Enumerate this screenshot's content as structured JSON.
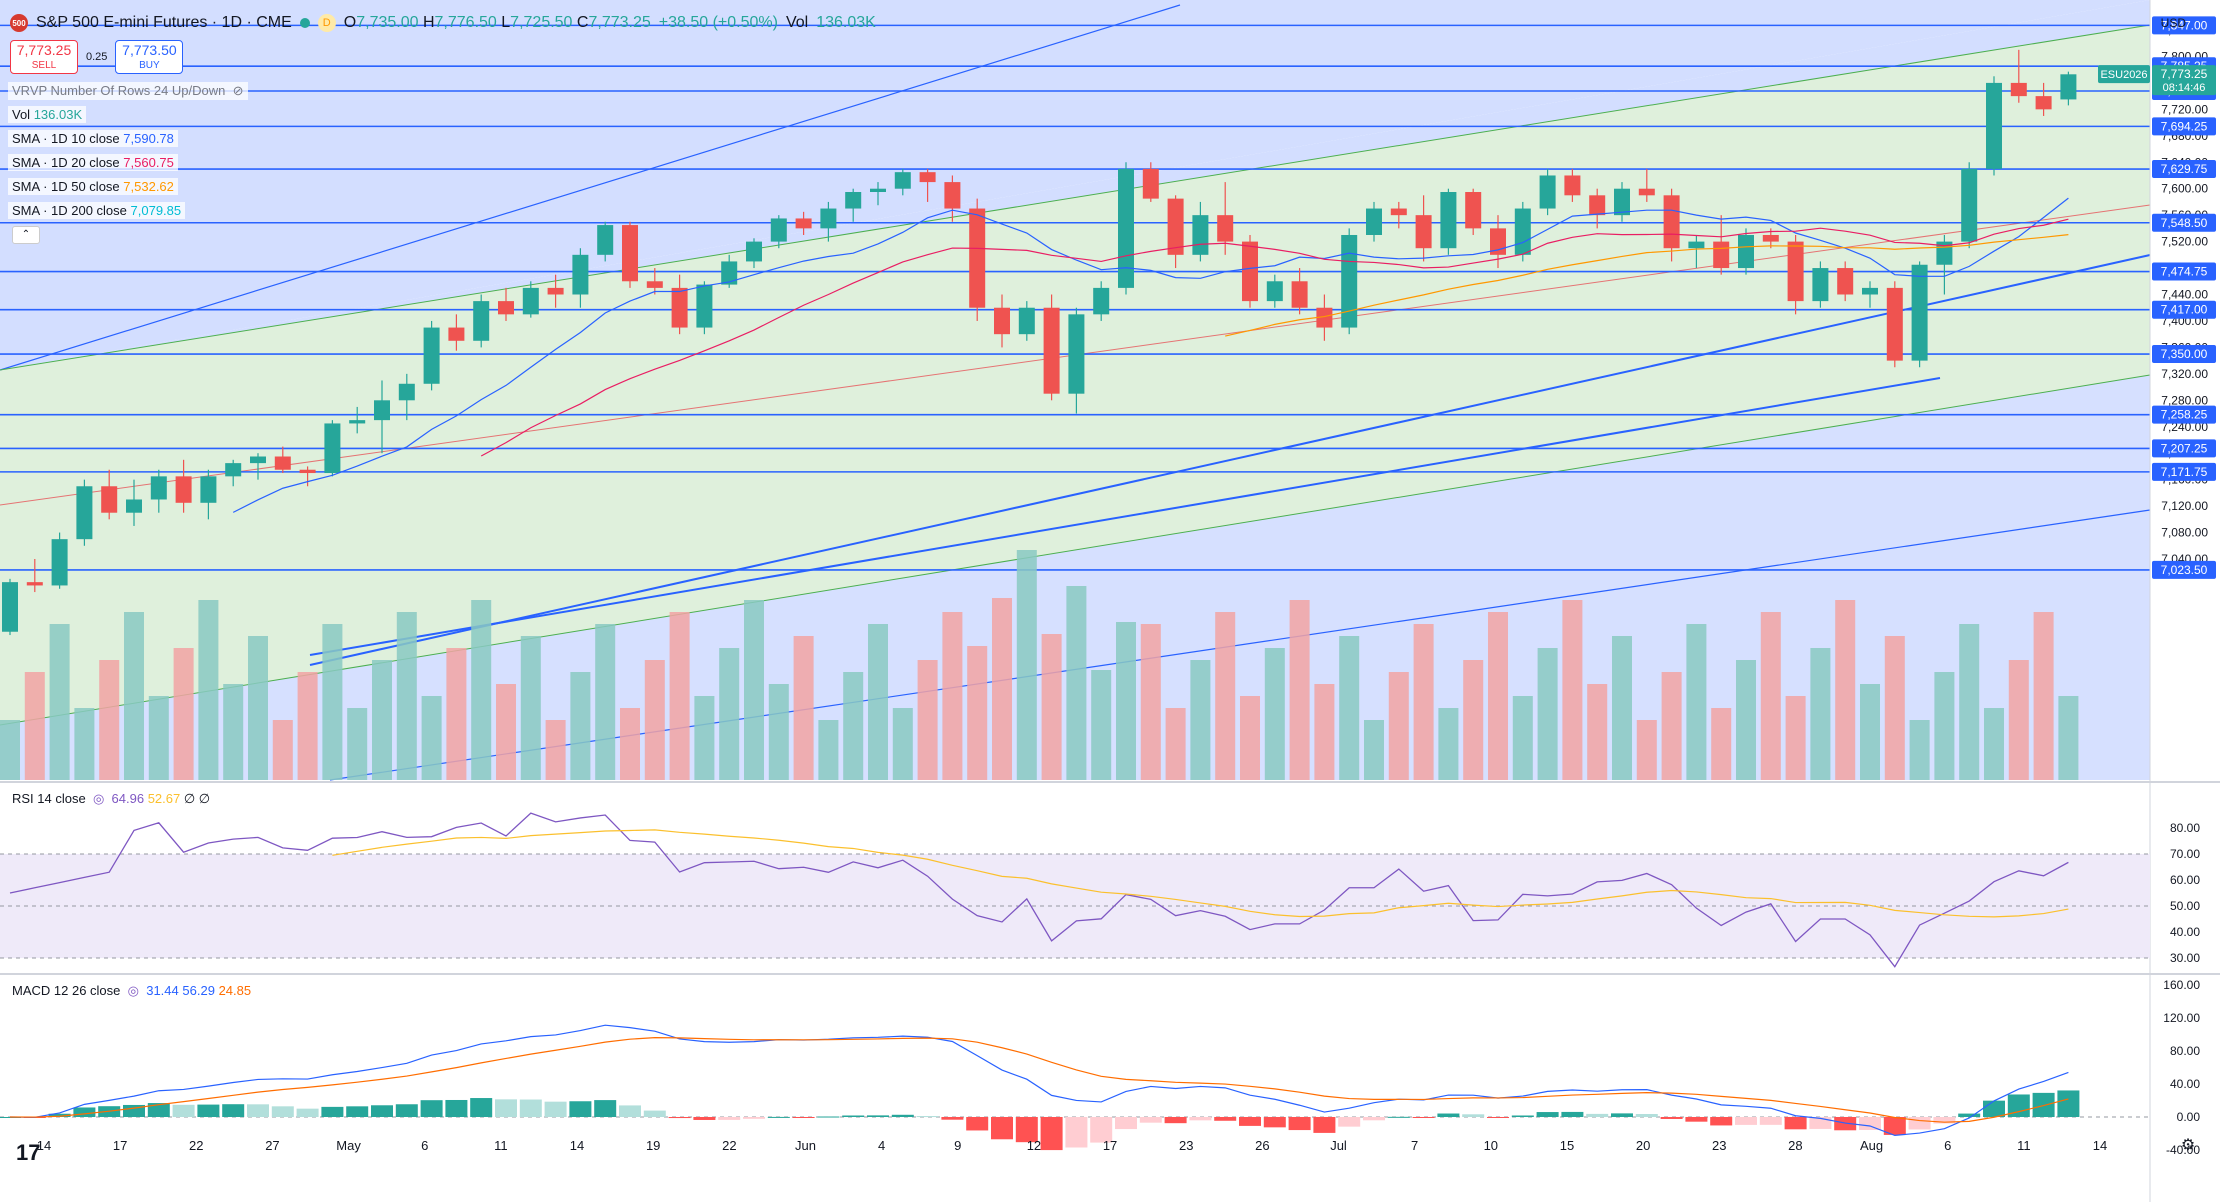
{
  "header": {
    "symbol_title": "S&P 500 E-mini Futures · 1D · CME",
    "logo_text": "500",
    "badge": "D",
    "ohlc": [
      {
        "k": "O",
        "v": "7,735.00"
      },
      {
        "k": "H",
        "v": "7,776.50"
      },
      {
        "k": "L",
        "v": "7,725.50"
      },
      {
        "k": "C",
        "v": "7,773.25"
      }
    ],
    "change": "+38.50 (+0.50%)",
    "volume_k": "Vol",
    "volume_v": "136.03K"
  },
  "trade": {
    "sell_price": "7,773.25",
    "sell_label": "SELL",
    "spread": "0.25",
    "buy_price": "7,773.50",
    "buy_label": "BUY"
  },
  "legends": {
    "vrvp": "VRVP Number Of Rows 24 Up/Down",
    "vol_label": "Vol",
    "vol_value": "136.03K",
    "sma": [
      {
        "label": "SMA · 1D 10 close",
        "value": "7,590.78",
        "color": "#2962ff"
      },
      {
        "label": "SMA · 1D 20 close",
        "value": "7,560.75",
        "color": "#e91e63"
      },
      {
        "label": "SMA · 1D 50 close",
        "value": "7,532.62",
        "color": "#ff9800"
      },
      {
        "label": "SMA · 1D 200 close",
        "value": "7,079.85",
        "color": "#00bcd4"
      }
    ],
    "rsi_label": "RSI 14 close",
    "rsi_value": "64.96",
    "rsi_ma": "52.67",
    "rsi_extra": "∅ ∅",
    "macd_label": "MACD 12 26 close",
    "macd_v1": "31.44",
    "macd_v2": "56.29",
    "macd_v3": "24.85"
  },
  "price_axis": {
    "currency": "USD",
    "ticks": [
      "7,840.00",
      "7,800.00",
      "7,760.00",
      "7,720.00",
      "7,680.00",
      "7,640.00",
      "7,600.00",
      "7,560.00",
      "7,520.00",
      "7,480.00",
      "7,440.00",
      "7,400.00",
      "7,360.00",
      "7,320.00",
      "7,280.00",
      "7,240.00",
      "7,200.00",
      "7,160.00",
      "7,120.00",
      "7,080.00",
      "7,040.00"
    ],
    "level_boxes": [
      {
        "label": "7,847.00",
        "price": 7847,
        "color": "#2962ff"
      },
      {
        "label": "7,785.25",
        "price": 7785.25,
        "color": "#2962ff"
      },
      {
        "label": "7,747.75",
        "price": 7747.75,
        "color": "#2962ff"
      },
      {
        "label": "7,694.25",
        "price": 7694.25,
        "color": "#2962ff"
      },
      {
        "label": "7,629.75",
        "price": 7629.75,
        "color": "#2962ff"
      },
      {
        "label": "7,548.50",
        "price": 7548.5,
        "color": "#2962ff"
      },
      {
        "label": "7,474.75",
        "price": 7474.75,
        "color": "#2962ff"
      },
      {
        "label": "7,417.00",
        "price": 7417,
        "color": "#2962ff"
      },
      {
        "label": "7,350.00",
        "price": 7350,
        "color": "#2962ff"
      },
      {
        "label": "7,258.25",
        "price": 7258.25,
        "color": "#2962ff"
      },
      {
        "label": "7,207.25",
        "price": 7207.25,
        "color": "#2962ff"
      },
      {
        "label": "7,171.75",
        "price": 7171.75,
        "color": "#2962ff"
      },
      {
        "label": "7,023.50",
        "price": 7023.5,
        "color": "#2962ff"
      }
    ],
    "last_price": "7,773.25",
    "countdown": "08:14:46",
    "contract": "ESU2026",
    "rsi_ticks": [
      "80.00",
      "70.00",
      "60.00",
      "50.00",
      "40.00",
      "30.00"
    ],
    "macd_ticks": [
      "160.00",
      "120.00",
      "80.00",
      "40.00",
      "0.00",
      "-40.00"
    ]
  },
  "time_axis": {
    "labels": [
      "14",
      "17",
      "22",
      "27",
      "May",
      "6",
      "11",
      "14",
      "19",
      "22",
      "Jun",
      "4",
      "9",
      "12",
      "17",
      "23",
      "26",
      "Jul",
      "7",
      "10",
      "15",
      "20",
      "23",
      "28",
      "Aug",
      "6",
      "11",
      "14"
    ]
  },
  "colors": {
    "up": "#26a69a",
    "down": "#ef5350",
    "level": "#2962ff"
  },
  "chart_data": {
    "type": "candlestick",
    "candles": [
      [
        6930,
        7010,
        6925,
        7005
      ],
      [
        7005,
        7040,
        6990,
        7000
      ],
      [
        7000,
        7080,
        6995,
        7070
      ],
      [
        7070,
        7160,
        7060,
        7150
      ],
      [
        7150,
        7175,
        7100,
        7110
      ],
      [
        7110,
        7160,
        7090,
        7130
      ],
      [
        7130,
        7175,
        7110,
        7165
      ],
      [
        7165,
        7190,
        7110,
        7125
      ],
      [
        7125,
        7175,
        7100,
        7165
      ],
      [
        7165,
        7190,
        7150,
        7185
      ],
      [
        7185,
        7200,
        7160,
        7195
      ],
      [
        7195,
        7210,
        7170,
        7175
      ],
      [
        7175,
        7180,
        7150,
        7170
      ],
      [
        7170,
        7250,
        7165,
        7245
      ],
      [
        7245,
        7270,
        7230,
        7250
      ],
      [
        7250,
        7310,
        7200,
        7280
      ],
      [
        7280,
        7320,
        7250,
        7305
      ],
      [
        7305,
        7400,
        7295,
        7390
      ],
      [
        7390,
        7410,
        7355,
        7370
      ],
      [
        7370,
        7440,
        7360,
        7430
      ],
      [
        7430,
        7450,
        7400,
        7410
      ],
      [
        7410,
        7460,
        7405,
        7450
      ],
      [
        7450,
        7470,
        7420,
        7440
      ],
      [
        7440,
        7510,
        7420,
        7500
      ],
      [
        7500,
        7550,
        7490,
        7545
      ],
      [
        7545,
        7550,
        7450,
        7460
      ],
      [
        7460,
        7480,
        7440,
        7450
      ],
      [
        7450,
        7470,
        7380,
        7390
      ],
      [
        7390,
        7460,
        7380,
        7455
      ],
      [
        7455,
        7500,
        7450,
        7490
      ],
      [
        7490,
        7525,
        7480,
        7520
      ],
      [
        7520,
        7560,
        7510,
        7555
      ],
      [
        7555,
        7565,
        7530,
        7540
      ],
      [
        7540,
        7580,
        7520,
        7570
      ],
      [
        7570,
        7600,
        7550,
        7595
      ],
      [
        7595,
        7610,
        7575,
        7600
      ],
      [
        7600,
        7630,
        7590,
        7625
      ],
      [
        7625,
        7630,
        7580,
        7610
      ],
      [
        7610,
        7620,
        7550,
        7570
      ],
      [
        7570,
        7585,
        7400,
        7420
      ],
      [
        7420,
        7440,
        7360,
        7380
      ],
      [
        7380,
        7430,
        7370,
        7420
      ],
      [
        7420,
        7440,
        7280,
        7290
      ],
      [
        7290,
        7420,
        7260,
        7410
      ],
      [
        7410,
        7460,
        7400,
        7450
      ],
      [
        7450,
        7640,
        7440,
        7630
      ],
      [
        7630,
        7640,
        7580,
        7585
      ],
      [
        7585,
        7590,
        7480,
        7500
      ],
      [
        7500,
        7580,
        7490,
        7560
      ],
      [
        7560,
        7610,
        7500,
        7520
      ],
      [
        7520,
        7530,
        7420,
        7430
      ],
      [
        7430,
        7470,
        7420,
        7460
      ],
      [
        7460,
        7480,
        7410,
        7420
      ],
      [
        7420,
        7440,
        7370,
        7390
      ],
      [
        7390,
        7540,
        7380,
        7530
      ],
      [
        7530,
        7580,
        7520,
        7570
      ],
      [
        7570,
        7580,
        7540,
        7560
      ],
      [
        7560,
        7590,
        7490,
        7510
      ],
      [
        7510,
        7600,
        7500,
        7595
      ],
      [
        7595,
        7600,
        7530,
        7540
      ],
      [
        7540,
        7560,
        7480,
        7500
      ],
      [
        7500,
        7580,
        7490,
        7570
      ],
      [
        7570,
        7630,
        7560,
        7620
      ],
      [
        7620,
        7630,
        7580,
        7590
      ],
      [
        7590,
        7600,
        7540,
        7560
      ],
      [
        7560,
        7610,
        7550,
        7600
      ],
      [
        7600,
        7630,
        7580,
        7590
      ],
      [
        7590,
        7600,
        7490,
        7510
      ],
      [
        7510,
        7530,
        7480,
        7520
      ],
      [
        7520,
        7560,
        7470,
        7480
      ],
      [
        7480,
        7540,
        7470,
        7530
      ],
      [
        7530,
        7540,
        7510,
        7520
      ],
      [
        7520,
        7530,
        7410,
        7430
      ],
      [
        7430,
        7490,
        7420,
        7480
      ],
      [
        7480,
        7490,
        7430,
        7440
      ],
      [
        7440,
        7460,
        7420,
        7450
      ],
      [
        7450,
        7460,
        7330,
        7340
      ],
      [
        7340,
        7490,
        7330,
        7485
      ],
      [
        7485,
        7530,
        7440,
        7520
      ],
      [
        7520,
        7640,
        7510,
        7630
      ],
      [
        7630,
        7770,
        7620,
        7760
      ],
      [
        7760,
        7810,
        7730,
        7740
      ],
      [
        7740,
        7760,
        7710,
        7720
      ],
      [
        7735,
        7777,
        7726,
        7773
      ]
    ]
  }
}
